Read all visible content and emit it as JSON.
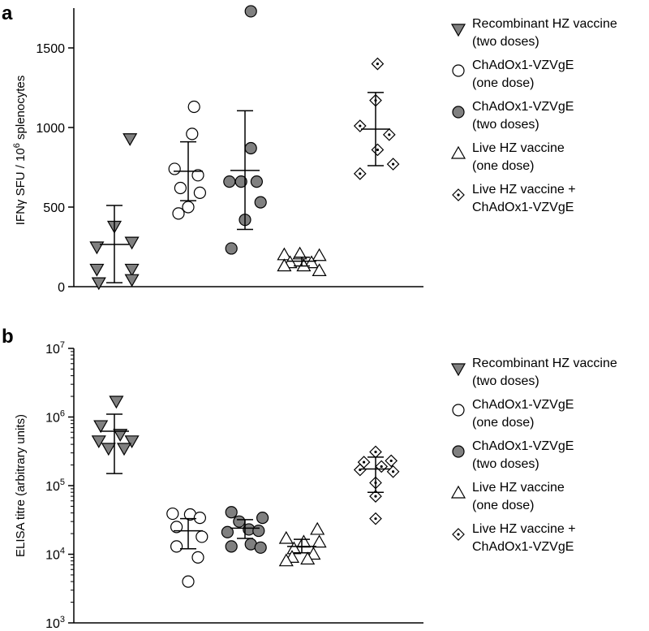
{
  "colors": {
    "grey": "#808080",
    "white": "#ffffff",
    "ink": "#000000"
  },
  "legend": [
    {
      "marker": "triangle-down-grey",
      "line1": "Recombinant HZ vaccine",
      "line2": "(two doses)"
    },
    {
      "marker": "circle-white",
      "line1": "ChAdOx1-VZVgE",
      "line2": "(one dose)"
    },
    {
      "marker": "circle-grey",
      "line1": "ChAdOx1-VZVgE",
      "line2": "(two doses)"
    },
    {
      "marker": "triangle-up-white",
      "line1": "Live HZ vaccine",
      "line2": "(one dose)"
    },
    {
      "marker": "diamond-dot",
      "line1": "Live HZ vaccine +",
      "line2": "ChAdOx1-VZVgE"
    }
  ],
  "chart_data": [
    {
      "panel": "a",
      "type": "scatter",
      "scale": "linear",
      "ylabel": {
        "pre": "IFNγ SFU / 10",
        "sup": "6",
        "post": " splenocytes"
      },
      "ylim": [
        0,
        1750
      ],
      "yticks": [
        {
          "value": 0,
          "label": "0"
        },
        {
          "value": 500,
          "label": "500"
        },
        {
          "value": 1000,
          "label": "1000"
        },
        {
          "value": 1500,
          "label": "1500"
        }
      ],
      "groups": [
        {
          "name": "Recombinant HZ vaccine (two doses)",
          "marker": "triangle-down-grey",
          "points": [
            [
              0.8,
              930
            ],
            [
              0.0,
              380
            ],
            [
              -0.9,
              250
            ],
            [
              0.9,
              280
            ],
            [
              -0.9,
              110
            ],
            [
              0.9,
              110
            ],
            [
              -0.8,
              25
            ],
            [
              0.9,
              45
            ]
          ],
          "mean": 265,
          "low": 25,
          "high": 510
        },
        {
          "name": "ChAdOx1-VZVgE (one dose)",
          "marker": "circle-white",
          "points": [
            [
              0.3,
              1130
            ],
            [
              0.2,
              960
            ],
            [
              -0.7,
              740
            ],
            [
              0.5,
              700
            ],
            [
              -0.4,
              620
            ],
            [
              0.6,
              590
            ],
            [
              0.0,
              500
            ],
            [
              -0.5,
              460
            ]
          ],
          "mean": 725,
          "low": 540,
          "high": 910
        },
        {
          "name": "ChAdOx1-VZVgE (two doses)",
          "marker": "circle-grey",
          "points": [
            [
              0.3,
              1730
            ],
            [
              0.3,
              870
            ],
            [
              -0.8,
              660
            ],
            [
              -0.2,
              660
            ],
            [
              0.6,
              660
            ],
            [
              0.8,
              530
            ],
            [
              0.0,
              420
            ],
            [
              -0.7,
              240
            ]
          ],
          "mean": 730,
          "low": 360,
          "high": 1105
        },
        {
          "name": "Live HZ vaccine (one dose)",
          "marker": "triangle-up-white",
          "points": [
            [
              -0.9,
              200
            ],
            [
              -0.1,
              205
            ],
            [
              0.9,
              195
            ],
            [
              -0.6,
              150
            ],
            [
              0.5,
              150
            ],
            [
              -0.9,
              130
            ],
            [
              0.1,
              130
            ],
            [
              0.9,
              100
            ]
          ],
          "mean": 160,
          "low": 130,
          "high": 185
        },
        {
          "name": "Live HZ vaccine + ChAdOx1-VZVgE",
          "marker": "diamond-dot",
          "points": [
            [
              0.1,
              1400
            ],
            [
              0.0,
              1170
            ],
            [
              -0.8,
              1010
            ],
            [
              0.7,
              955
            ],
            [
              0.1,
              860
            ],
            [
              -0.8,
              710
            ],
            [
              0.9,
              770
            ]
          ],
          "mean": 990,
          "low": 760,
          "high": 1220
        }
      ]
    },
    {
      "panel": "b",
      "type": "scatter",
      "scale": "log",
      "ylabel": {
        "pre": "ELISA titre (arbitrary units)",
        "sup": "",
        "post": ""
      },
      "ylim": [
        1000,
        10000000
      ],
      "yticks": [
        {
          "value": 1000,
          "base": "10",
          "exp": "3"
        },
        {
          "value": 10000,
          "base": "10",
          "exp": "4"
        },
        {
          "value": 100000,
          "base": "10",
          "exp": "5"
        },
        {
          "value": 1000000,
          "base": "10",
          "exp": "6"
        },
        {
          "value": 10000000,
          "base": "10",
          "exp": "7"
        }
      ],
      "groups": [
        {
          "name": "Recombinant HZ vaccine (two doses)",
          "marker": "triangle-down-grey",
          "points": [
            [
              0.1,
              1700000
            ],
            [
              -0.7,
              750000
            ],
            [
              0.3,
              560000
            ],
            [
              0.9,
              450000
            ],
            [
              -0.8,
              450000
            ],
            [
              -0.3,
              350000
            ],
            [
              0.5,
              350000
            ]
          ],
          "mean": 620000,
          "low": 150000,
          "high": 1100000
        },
        {
          "name": "ChAdOx1-VZVgE (one dose)",
          "marker": "circle-white",
          "points": [
            [
              -0.8,
              39000
            ],
            [
              0.1,
              38000
            ],
            [
              0.6,
              34000
            ],
            [
              -0.6,
              25000
            ],
            [
              0.7,
              18000
            ],
            [
              -0.6,
              13000
            ],
            [
              0.5,
              9000
            ],
            [
              0.0,
              4000
            ]
          ],
          "mean": 22000,
          "low": 12000,
          "high": 33000
        },
        {
          "name": "ChAdOx1-VZVgE (two doses)",
          "marker": "circle-grey",
          "points": [
            [
              -0.7,
              41000
            ],
            [
              0.9,
              34000
            ],
            [
              -0.3,
              30000
            ],
            [
              -0.9,
              21000
            ],
            [
              0.2,
              23000
            ],
            [
              0.7,
              22000
            ],
            [
              -0.7,
              13000
            ],
            [
              0.3,
              14000
            ],
            [
              0.8,
              12500
            ]
          ],
          "mean": 24000,
          "low": 17000,
          "high": 32000
        },
        {
          "name": "Live HZ vaccine (one dose)",
          "marker": "triangle-up-white",
          "points": [
            [
              0.8,
              23000
            ],
            [
              -0.8,
              17000
            ],
            [
              0.1,
              15000
            ],
            [
              0.9,
              15000
            ],
            [
              -0.4,
              12000
            ],
            [
              0.6,
              10000
            ],
            [
              -0.5,
              9000
            ],
            [
              0.3,
              8500
            ],
            [
              -0.8,
              8000
            ]
          ],
          "mean": 13000,
          "low": 10500,
          "high": 16500
        },
        {
          "name": "Live HZ vaccine + ChAdOx1-VZVgE",
          "marker": "diamond-dot",
          "points": [
            [
              0.0,
              310000
            ],
            [
              -0.6,
              220000
            ],
            [
              0.8,
              230000
            ],
            [
              -0.8,
              170000
            ],
            [
              0.3,
              190000
            ],
            [
              0.9,
              160000
            ],
            [
              0.0,
              110000
            ],
            [
              0.0,
              70000
            ],
            [
              0.0,
              33000
            ]
          ],
          "mean": 175000,
          "low": 80000,
          "high": 260000
        }
      ]
    }
  ]
}
